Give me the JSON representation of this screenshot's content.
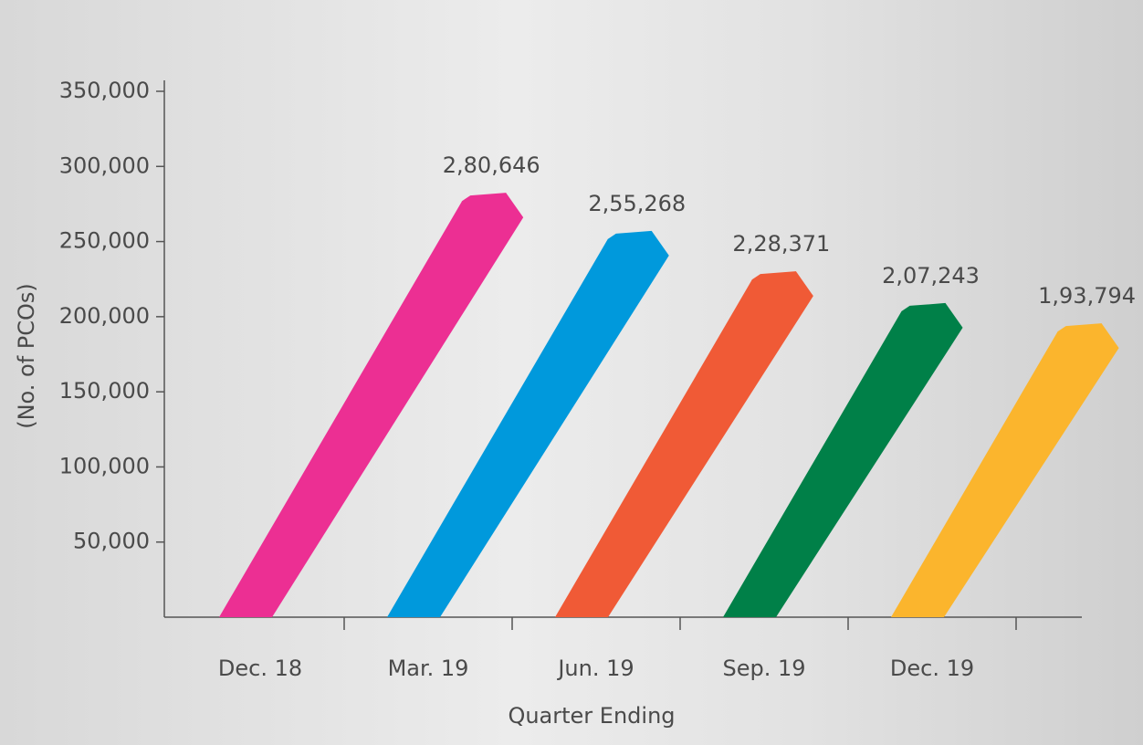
{
  "chart_data": {
    "type": "bar",
    "categories": [
      "Dec. 18",
      "Mar. 19",
      "Jun. 19",
      "Sep. 19",
      "Dec. 19"
    ],
    "values": [
      280646,
      255268,
      228371,
      207243,
      193794
    ],
    "value_labels": [
      "2,80,646",
      "2,55,268",
      "2,28,371",
      "2,07,243",
      "1,93,794"
    ],
    "colors": [
      "#ec2f93",
      "#0099dc",
      "#f05a36",
      "#008048",
      "#fbb52d"
    ],
    "ylim": [
      0,
      350000
    ],
    "yticks": [
      {
        "value": 50000,
        "label": "50,000"
      },
      {
        "value": 100000,
        "label": "100,000"
      },
      {
        "value": 150000,
        "label": "150,000"
      },
      {
        "value": 200000,
        "label": "200,000"
      },
      {
        "value": 250000,
        "label": "250,000"
      },
      {
        "value": 300000,
        "label": "300,000"
      },
      {
        "value": 350000,
        "label": "350,000"
      }
    ],
    "x_label": "Quarter Ending",
    "y_label": "(No. of PCOs)"
  }
}
